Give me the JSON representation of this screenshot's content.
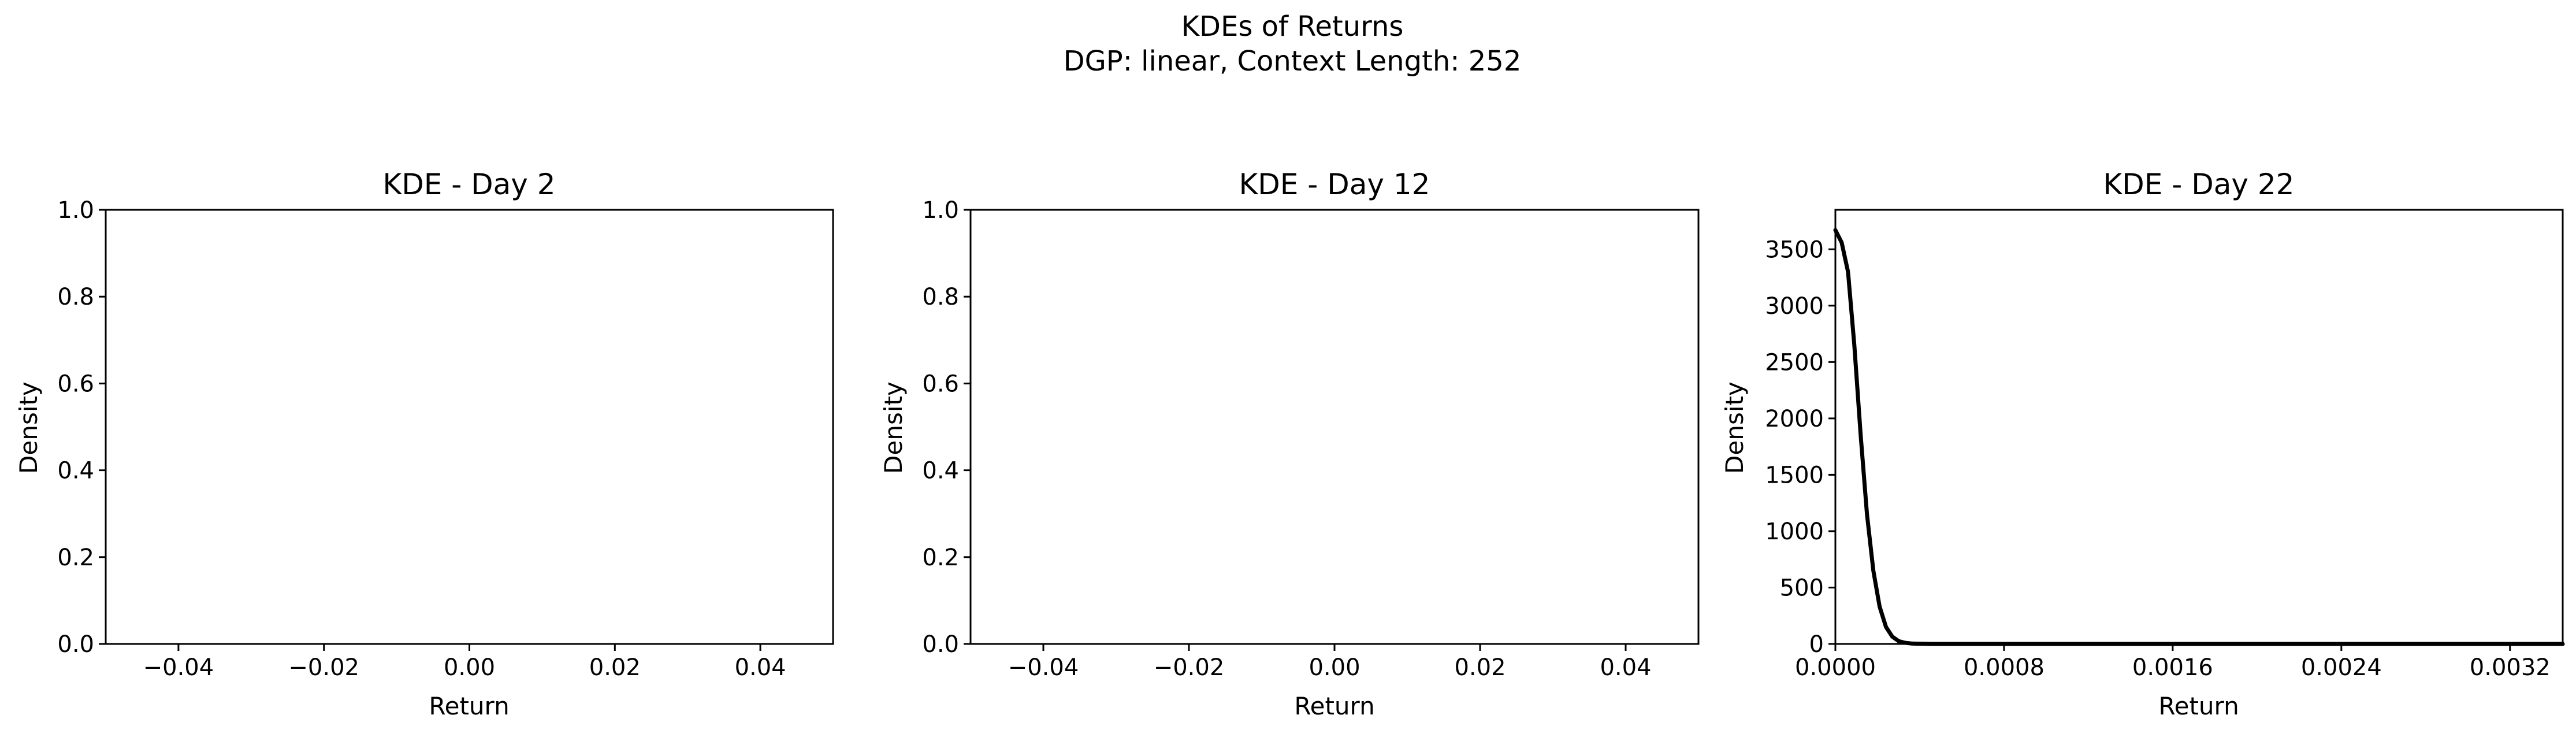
{
  "figure": {
    "title_line1": "KDEs of Returns",
    "title_line2": "DGP: linear, Context Length: 252"
  },
  "chart_data": [
    {
      "type": "line",
      "title": "KDE - Day 2",
      "xlabel": "Return",
      "ylabel": "Density",
      "xlim": [
        -0.05,
        0.05
      ],
      "ylim": [
        0,
        1.0
      ],
      "xticks": [
        -0.04,
        -0.02,
        0.0,
        0.02,
        0.04
      ],
      "xtick_labels": [
        "−0.04",
        "−0.02",
        "0.00",
        "0.02",
        "0.04"
      ],
      "yticks": [
        0.0,
        0.2,
        0.4,
        0.6,
        0.8,
        1.0
      ],
      "ytick_labels": [
        "0.0",
        "0.2",
        "0.4",
        "0.6",
        "0.8",
        "1.0"
      ],
      "series": []
    },
    {
      "type": "line",
      "title": "KDE - Day 12",
      "xlabel": "Return",
      "ylabel": "Density",
      "xlim": [
        -0.05,
        0.05
      ],
      "ylim": [
        0,
        1.0
      ],
      "xticks": [
        -0.04,
        -0.02,
        0.0,
        0.02,
        0.04
      ],
      "xtick_labels": [
        "−0.04",
        "−0.02",
        "0.00",
        "0.02",
        "0.04"
      ],
      "yticks": [
        0.0,
        0.2,
        0.4,
        0.6,
        0.8,
        1.0
      ],
      "ytick_labels": [
        "0.0",
        "0.2",
        "0.4",
        "0.6",
        "0.8",
        "1.0"
      ],
      "series": []
    },
    {
      "type": "line",
      "title": "KDE - Day 22",
      "xlabel": "Return",
      "ylabel": "Density",
      "xlim": [
        0,
        0.00345
      ],
      "ylim": [
        0,
        3850
      ],
      "xticks": [
        0.0,
        0.0008,
        0.0016,
        0.0024,
        0.0032
      ],
      "xtick_labels": [
        "0.0000",
        "0.0008",
        "0.0016",
        "0.0024",
        "0.0032"
      ],
      "yticks": [
        0,
        500,
        1000,
        1500,
        2000,
        2500,
        3000,
        3500
      ],
      "ytick_labels": [
        "0",
        "500",
        "1000",
        "1500",
        "2000",
        "2500",
        "3000",
        "3500"
      ],
      "series": [
        {
          "color": "#000000",
          "x": [
            0.0,
            3e-05,
            6e-05,
            9e-05,
            0.00012,
            0.00015,
            0.00018,
            0.00021,
            0.00024,
            0.00027,
            0.0003,
            0.00033,
            0.00036,
            0.00039,
            0.00042,
            0.00045,
            0.0005,
            0.0006,
            0.0008,
            0.0012,
            0.0016,
            0.002,
            0.0024,
            0.0028,
            0.0032,
            0.00345
          ],
          "y": [
            3670,
            3560,
            3300,
            2650,
            1850,
            1150,
            650,
            330,
            150,
            65,
            25,
            10,
            4,
            2,
            1,
            0,
            0,
            0,
            0,
            0,
            0,
            0,
            0,
            0,
            0,
            0
          ]
        }
      ]
    }
  ]
}
